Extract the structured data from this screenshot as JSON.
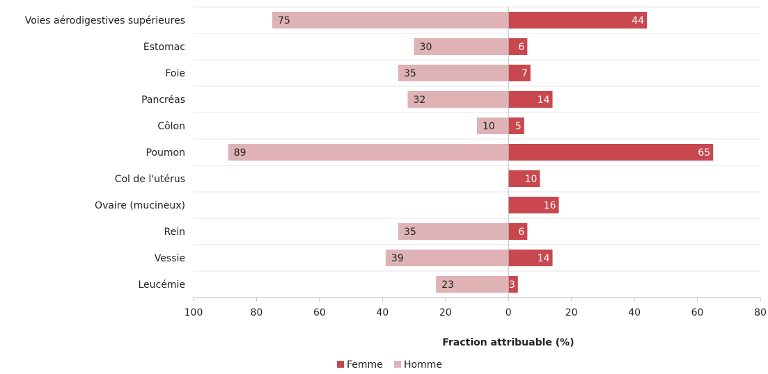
{
  "chart_data": {
    "type": "bar",
    "orientation": "horizontal-diverging",
    "categories": [
      "Voies aérodigestives supérieures",
      "Estomac",
      "Foie",
      "Pancréas",
      "Côlon",
      "Poumon",
      "Col de l'utérus",
      "Ovaire (mucineux)",
      "Rein",
      "Vessie",
      "Leucémie"
    ],
    "series": [
      {
        "name": "Femme",
        "color": "#c9474e",
        "label_color": "#ffffff",
        "side": "right",
        "values": [
          44,
          6,
          7,
          14,
          5,
          65,
          10,
          16,
          6,
          14,
          3
        ]
      },
      {
        "name": "Homme",
        "color": "#dfb3b5",
        "label_color": "#222222",
        "side": "left",
        "values": [
          75,
          30,
          35,
          32,
          10,
          89,
          null,
          null,
          35,
          39,
          23
        ]
      }
    ],
    "xlim": [
      -100,
      80
    ],
    "xticks": [
      {
        "value": -100,
        "label": "100"
      },
      {
        "value": -80,
        "label": "80"
      },
      {
        "value": -60,
        "label": "60"
      },
      {
        "value": -40,
        "label": "40"
      },
      {
        "value": -20,
        "label": "20"
      },
      {
        "value": 0,
        "label": "0"
      },
      {
        "value": 20,
        "label": "20"
      },
      {
        "value": 40,
        "label": "40"
      },
      {
        "value": 60,
        "label": "60"
      },
      {
        "value": 80,
        "label": "80"
      }
    ],
    "xlabel": "Fraction attribuable (%)",
    "grid": "horizontal",
    "legend": {
      "position": "bottom",
      "entries": [
        "Femme",
        "Homme"
      ]
    }
  }
}
